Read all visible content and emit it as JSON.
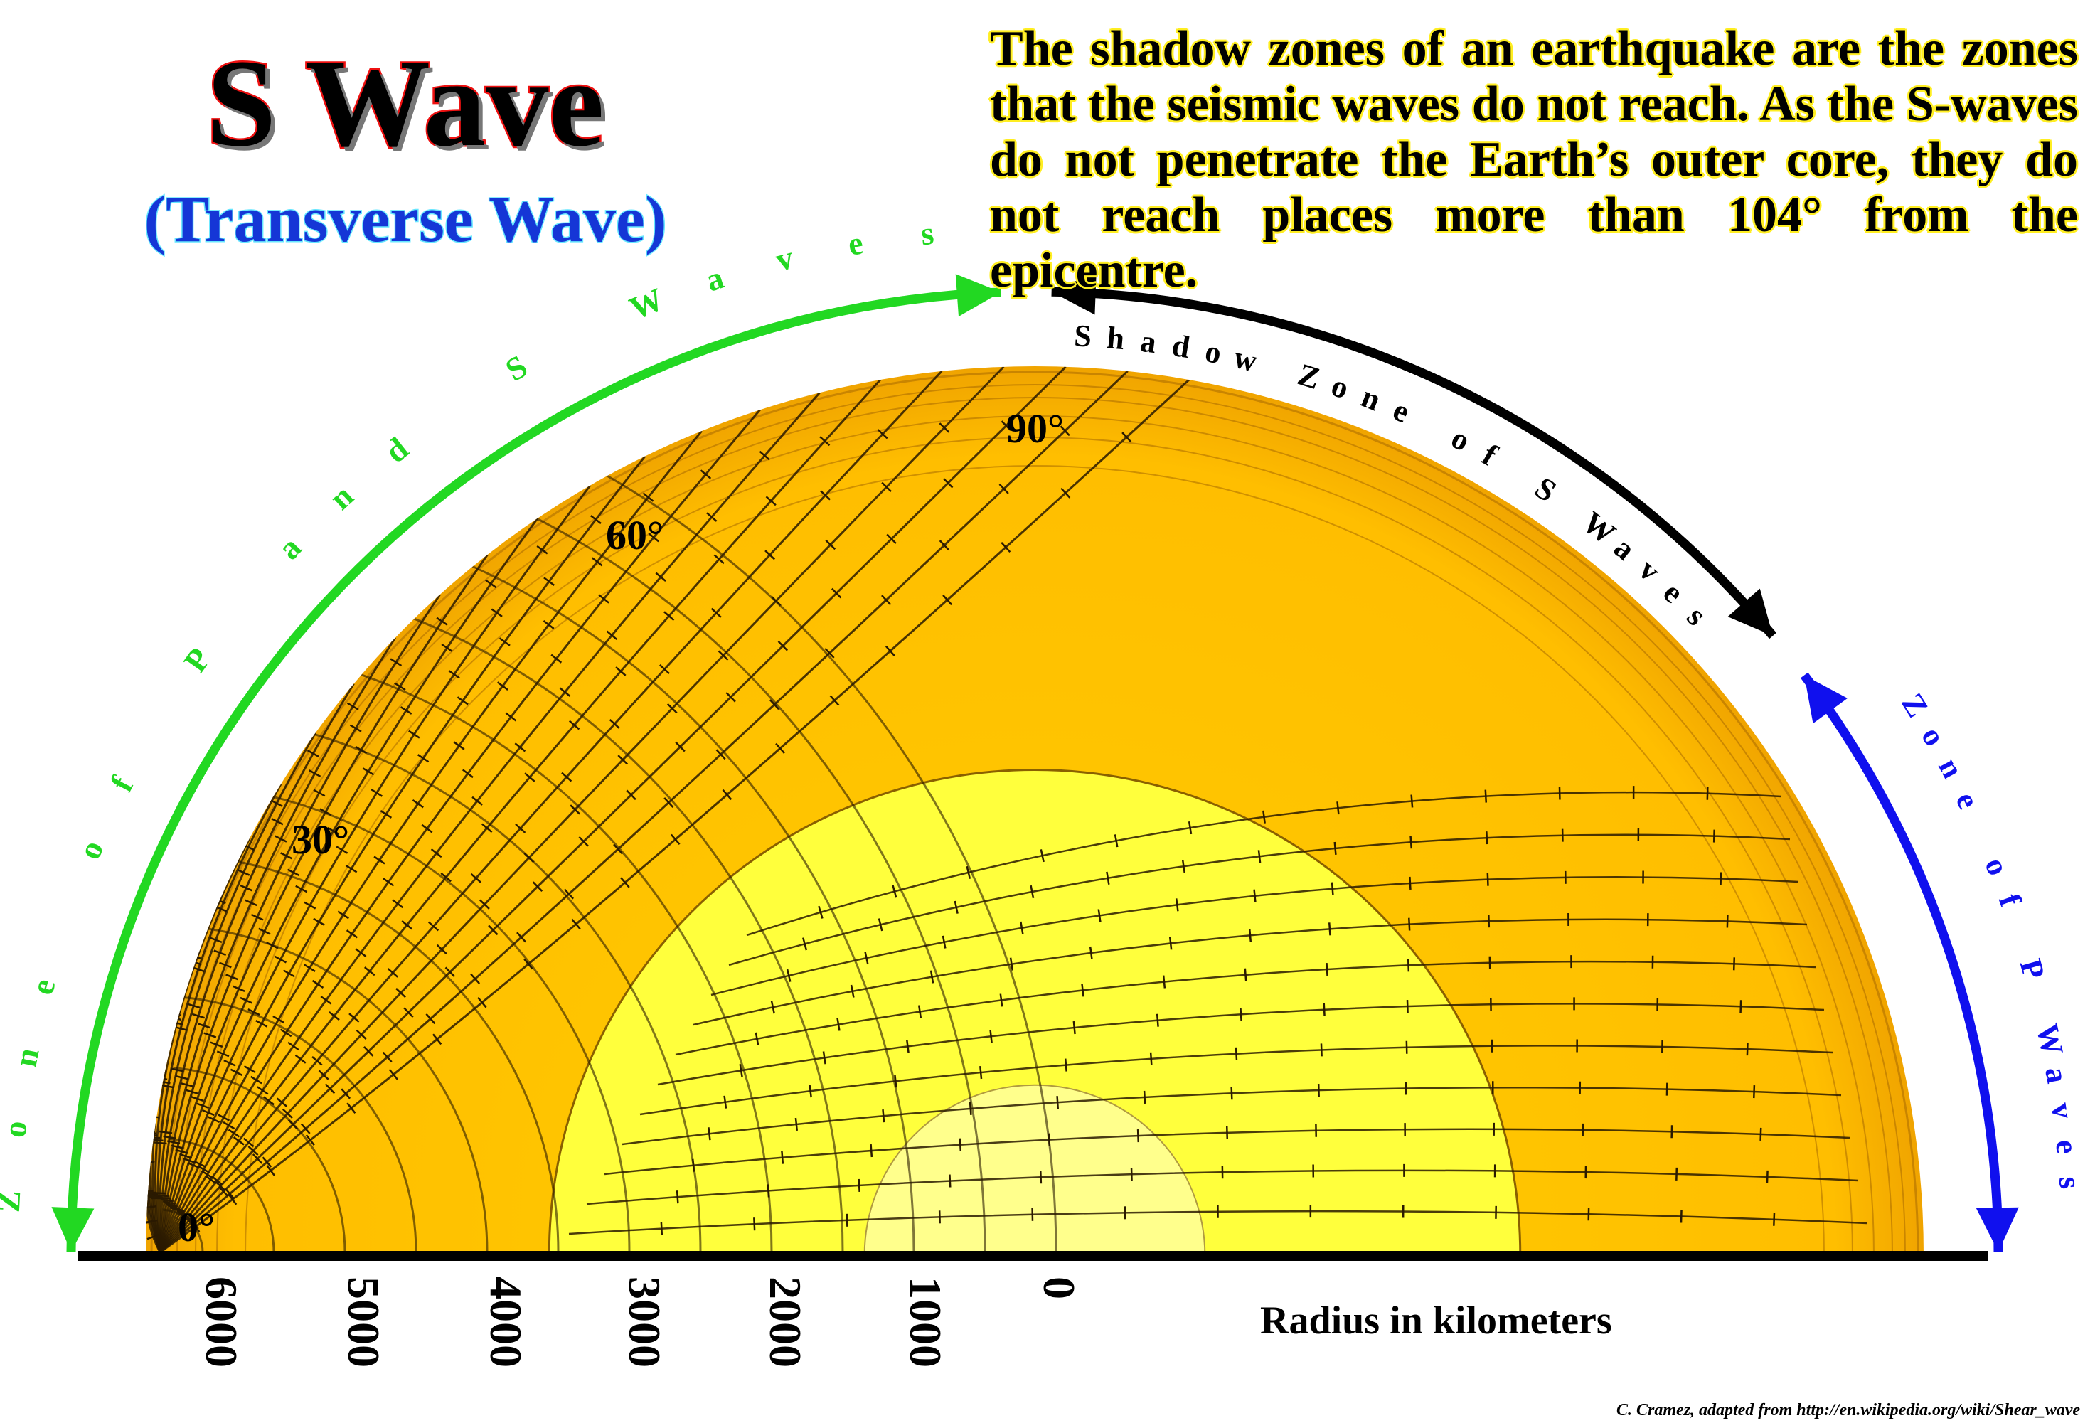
{
  "title": "S Wave",
  "subtitle": "(Transverse Wave)",
  "description": "The shadow zones of an earthquake are the zones that the seismic waves do not reach. As the S-waves do not penetrate the Earth’s outer core, they do not reach places more than 104° from the epicentre.",
  "zones": {
    "p_and_s": "Zone of P and S Waves",
    "shadow_s": "Shadow Zone of S Waves",
    "p_only": "Zone of P Waves"
  },
  "angle_labels": [
    "0°",
    "30°",
    "60°",
    "90°"
  ],
  "radius_axis": {
    "label": "Radius in kilometers",
    "ticks": [
      "6000",
      "5000",
      "4000",
      "3000",
      "2000",
      "1000",
      "0"
    ]
  },
  "credit": "C. Cramez, adapted from  http://en.wikipedia.org/wiki/Shear_wave",
  "colors": {
    "mantle": "#ffc400",
    "outer_core": "#ffff3c",
    "inner_core": "#ffff8c",
    "zone_p_and_s_arrow": "#22d822",
    "shadow_arrow": "#000000",
    "zone_p_arrow": "#1010ee"
  },
  "icons": [
    "arrowhead-icon"
  ]
}
